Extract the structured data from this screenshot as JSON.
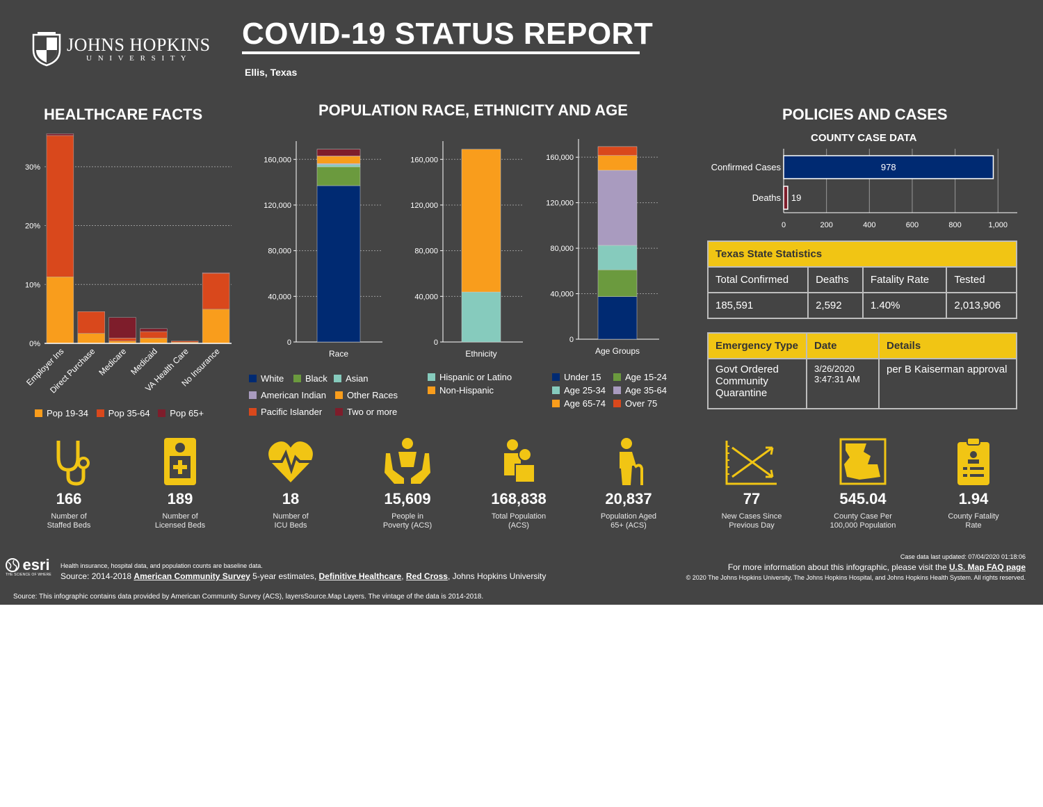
{
  "header": {
    "logo_name": "JOHNS HOPKINS",
    "logo_sub": "U N I V E R S I T Y",
    "title": "COVID-19 STATUS REPORT",
    "location": "Ellis, Texas"
  },
  "sections": {
    "healthcare": "HEALTHCARE FACTS",
    "population": "POPULATION RACE, ETHNICITY AND AGE",
    "policies": "POLICIES AND CASES",
    "county_case": "COUNTY CASE DATA"
  },
  "colors": {
    "orange": "#f99d1c",
    "red": "#d9481c",
    "maroon": "#7e1d2b",
    "navy": "#002a72",
    "green": "#6b9a3e",
    "teal": "#86cbbd",
    "lavender": "#a99bbf",
    "yellow": "#f1c514"
  },
  "chart_data": [
    {
      "type": "bar",
      "name": "healthcare",
      "categories": [
        "Employer Ins",
        "Direct Purchase",
        "Medicare",
        "Medicaid",
        "VA Health Care",
        "No Insurance"
      ],
      "series": [
        {
          "name": "Pop 19-34",
          "values": [
            11.3,
            1.7,
            0.4,
            0.9,
            0.2,
            5.8
          ]
        },
        {
          "name": "Pop 35-64",
          "values": [
            24.0,
            3.7,
            0.5,
            1.1,
            0.2,
            6.1
          ]
        },
        {
          "name": "Pop 65+",
          "values": [
            0.3,
            0.0,
            3.5,
            0.5,
            0.0,
            0.1
          ]
        }
      ],
      "yticks": [
        "0%",
        "10%",
        "20%",
        "30%"
      ],
      "ylim": [
        0,
        36
      ]
    },
    {
      "type": "bar",
      "name": "race",
      "xlabel": "Race",
      "series": [
        {
          "name": "White",
          "value": 137000
        },
        {
          "name": "Black",
          "value": 16500
        },
        {
          "name": "Asian",
          "value": 2000
        },
        {
          "name": "American Indian",
          "value": 800
        },
        {
          "name": "Other Races",
          "value": 6500
        },
        {
          "name": "Pacific Islander",
          "value": 100
        },
        {
          "name": "Two or more",
          "value": 5938
        }
      ],
      "yticks": [
        "0",
        "40,000",
        "80,000",
        "120,000",
        "160,000"
      ],
      "ylim": [
        0,
        176000
      ]
    },
    {
      "type": "bar",
      "name": "ethnicity",
      "xlabel": "Ethnicity",
      "series": [
        {
          "name": "Hispanic or Latino",
          "value": 43800
        },
        {
          "name": "Non-Hispanic",
          "value": 125038
        }
      ],
      "yticks": [
        "0",
        "40,000",
        "80,000",
        "120,000",
        "160,000"
      ],
      "ylim": [
        0,
        176000
      ]
    },
    {
      "type": "bar",
      "name": "age",
      "xlabel": "Age Groups",
      "series": [
        {
          "name": "Under 15",
          "value": 37500
        },
        {
          "name": "Age 15-24",
          "value": 23500
        },
        {
          "name": "Age 25-34",
          "value": 21500
        },
        {
          "name": "Age 35-64",
          "value": 66000
        },
        {
          "name": "Age 65-74",
          "value": 13000
        },
        {
          "name": "Over 75",
          "value": 7838
        }
      ],
      "yticks": [
        "0",
        "40,000",
        "80,000",
        "120,000",
        "160,000"
      ],
      "ylim": [
        0,
        176000
      ]
    },
    {
      "type": "bar",
      "name": "county_cases",
      "title": "COUNTY CASE DATA",
      "categories": [
        "Confirmed Cases",
        "Deaths"
      ],
      "values": [
        978,
        19
      ],
      "xticks": [
        "0",
        "200",
        "400",
        "600",
        "800",
        "1,000"
      ],
      "xlim": [
        0,
        1090
      ]
    }
  ],
  "legends": {
    "healthcare": [
      "Pop 19-34",
      "Pop 35-64",
      "Pop 65+"
    ],
    "race": [
      "White",
      "Black",
      "Asian",
      "American Indian",
      "Other Races",
      "Pacific Islander",
      "Two or more"
    ],
    "ethnicity": [
      "Hispanic or Latino",
      "Non-Hispanic"
    ],
    "age": [
      "Under 15",
      "Age 15-24",
      "Age 25-34",
      "Age 35-64",
      "Age 65-74",
      "Over 75"
    ]
  },
  "state_stats": {
    "title": "Texas State Statistics",
    "headers": [
      "Total Confirmed",
      "Deaths",
      "Fatality Rate",
      "Tested"
    ],
    "values": [
      "185,591",
      "2,592",
      "1.40%",
      "2,013,906"
    ]
  },
  "emergency": {
    "headers": [
      "Emergency Type",
      "Date",
      "Details"
    ],
    "type": "Govt Ordered Community Quarantine",
    "date": "3/26/2020 3:47:31 AM",
    "details": "per B Kaiserman approval"
  },
  "stats": [
    {
      "icon": "stethoscope-icon",
      "value": "166",
      "label1": "Number of",
      "label2": "Staffed Beds"
    },
    {
      "icon": "hospital-bed-icon",
      "value": "189",
      "label1": "Number of",
      "label2": "Licensed Beds"
    },
    {
      "icon": "heartbeat-icon",
      "value": "18",
      "label1": "Number of",
      "label2": "ICU Beds"
    },
    {
      "icon": "helping-hands-icon",
      "value": "15,609",
      "label1": "People in",
      "label2": "Poverty (ACS)"
    },
    {
      "icon": "people-icon",
      "value": "168,838",
      "label1": "Total Population",
      "label2": "(ACS)"
    },
    {
      "icon": "elderly-person-icon",
      "value": "20,837",
      "label1": "Population Aged",
      "label2": "65+ (ACS)"
    },
    {
      "icon": "trend-arrows-icon",
      "value": "77",
      "label1": "New Cases Since",
      "label2": "Previous Day"
    },
    {
      "icon": "county-map-icon",
      "value": "545.04",
      "label1": "County Case Per",
      "label2": "100,000 Population"
    },
    {
      "icon": "clipboard-icon",
      "value": "1.94",
      "label1": "County Fatality",
      "label2": "Rate"
    }
  ],
  "footer": {
    "esri": "esri",
    "esri_tag": "THE SCIENCE OF WHERE",
    "note": "Health insurance, hospital data, and population counts are baseline data.",
    "source_prefix": "Source: 2014-2018 ",
    "acs_link": "American Community Survey",
    "source_mid": " 5-year estimates, ",
    "dh_link": "Definitive Healthcare",
    "comma": ", ",
    "rc_link": "Red Cross",
    "source_end": ", Johns Hopkins University",
    "updated": "Case data last updated: 07/04/2020 01:18:06",
    "more_info": "For more information about this infographic, please visit the ",
    "faq_link": "U.S. Map FAQ page",
    "copyright": "© 2020 The Johns Hopkins University, The Johns Hopkins Hospital, and Johns Hopkins Health System. All rights reserved.",
    "source_line": "Source: This infographic contains data provided by American Community Survey (ACS), layersSource.Map Layers. The vintage of the data is 2014-2018."
  }
}
